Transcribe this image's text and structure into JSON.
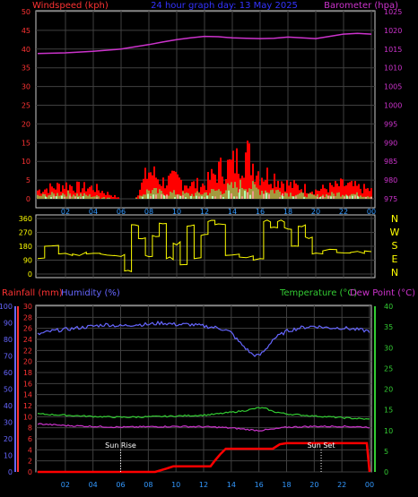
{
  "header": {
    "left_label": "Windspeed (kph)",
    "center_label": "24 hour graph day: 13 May 2025",
    "right_label": "Barometer (hpa)"
  },
  "colors": {
    "wind": "#ff0000",
    "gust": "#ff0000",
    "wind_avg": "#66ff66",
    "baro": "#cc33cc",
    "direction": "#ffff00",
    "temp": "#33cc33",
    "dew": "#cc33cc",
    "humidity": "#6666ff",
    "rain": "#ff0000",
    "axis_left": "#ff3333",
    "axis_right_top": "#cc33cc",
    "axis_temp": "#33cc33",
    "axis_humidity": "#6666ff",
    "x_ticks": "#3399ff",
    "grid": "#404040",
    "frame": "#cccccc"
  },
  "chart_data": [
    {
      "type": "line",
      "title": "24 hour graph day: 13 May 2025",
      "xlabel": "",
      "x_ticks": [
        "02",
        "04",
        "06",
        "08",
        "10",
        "12",
        "14",
        "16",
        "18",
        "20",
        "22",
        "00"
      ],
      "xlim": [
        0,
        24
      ],
      "left_axis": {
        "label": "Windspeed (kph)",
        "ylim": [
          0,
          50
        ],
        "ticks": [
          "0",
          "5",
          "10",
          "15",
          "20",
          "25",
          "30",
          "35",
          "40",
          "45",
          "50"
        ]
      },
      "right_axis": {
        "label": "Barometer (hpa)",
        "ylim": [
          975,
          1025
        ],
        "ticks": [
          "975",
          "980",
          "985",
          "990",
          "995",
          "1000",
          "1005",
          "1010",
          "1015",
          "1020",
          "1025"
        ]
      },
      "series": [
        {
          "name": "Barometer (hpa)",
          "axis": "right",
          "x": [
            0,
            2,
            4,
            6,
            7,
            8,
            9,
            10,
            11,
            12,
            13,
            14,
            15,
            16,
            17,
            18,
            19,
            20,
            21,
            22,
            23,
            24
          ],
          "y": [
            1013.8,
            1014.0,
            1014.4,
            1015.0,
            1015.6,
            1016.2,
            1016.9,
            1017.5,
            1018.0,
            1018.4,
            1018.3,
            1018.0,
            1017.9,
            1017.8,
            1017.9,
            1018.2,
            1018.0,
            1017.8,
            1018.4,
            1019.0,
            1019.2,
            1019.0
          ]
        },
        {
          "name": "Gust",
          "axis": "left",
          "x": [
            0,
            1,
            2,
            3,
            4,
            5,
            6,
            7,
            8,
            9,
            10,
            11,
            12,
            13,
            14,
            15,
            16,
            17,
            18,
            19,
            20,
            21,
            22,
            23,
            24
          ],
          "y": [
            3,
            4,
            5,
            4,
            4,
            2,
            0,
            0,
            10,
            6,
            7,
            5,
            5,
            10,
            12,
            16,
            9,
            8,
            5,
            4,
            3,
            4,
            5,
            4,
            3
          ]
        },
        {
          "name": "Average",
          "axis": "left",
          "x": [
            0,
            1,
            2,
            3,
            4,
            5,
            6,
            7,
            8,
            9,
            10,
            11,
            12,
            13,
            14,
            15,
            16,
            17,
            18,
            19,
            20,
            21,
            22,
            23,
            24
          ],
          "y": [
            1,
            1.5,
            2,
            1.5,
            1,
            0.5,
            0,
            0,
            3,
            2,
            2,
            1.5,
            2,
            3,
            4,
            5,
            3,
            3,
            2,
            1.5,
            1,
            1.5,
            2,
            1.5,
            1
          ]
        }
      ]
    },
    {
      "type": "line",
      "title": "",
      "x_ticks": [],
      "xlim": [
        0,
        24
      ],
      "left_axis": {
        "label": "",
        "ylim": [
          0,
          360
        ],
        "ticks": [
          "0",
          "90",
          "180",
          "270",
          "360"
        ]
      },
      "right_axis": {
        "label": "",
        "ticks": [
          "N",
          "W",
          "S",
          "E",
          "N"
        ]
      },
      "series": [
        {
          "name": "Wind direction",
          "x": [
            0,
            1,
            2,
            3,
            4,
            5,
            6,
            6.5,
            7,
            7.5,
            8,
            8.5,
            9,
            9.5,
            10,
            10.5,
            11,
            11.5,
            12,
            12.5,
            13,
            14,
            15,
            16,
            16.5,
            17,
            17.5,
            18,
            18.5,
            19,
            19.5,
            20,
            21,
            22,
            23,
            24
          ],
          "y": [
            100,
            180,
            130,
            130,
            130,
            130,
            120,
            20,
            320,
            230,
            120,
            250,
            330,
            100,
            200,
            60,
            310,
            100,
            250,
            340,
            320,
            120,
            110,
            90,
            340,
            300,
            340,
            300,
            180,
            310,
            240,
            130,
            150,
            140,
            140,
            150
          ]
        }
      ]
    },
    {
      "type": "line",
      "title": "",
      "x_ticks": [
        "02",
        "04",
        "06",
        "08",
        "10",
        "12",
        "14",
        "16",
        "18",
        "20",
        "22",
        "00"
      ],
      "xlim": [
        0,
        24
      ],
      "axes": {
        "rainfall": {
          "label": "Rainfall (mm)",
          "ylim": [
            0,
            30
          ],
          "ticks": [
            "0",
            "2",
            "4",
            "6",
            "8",
            "10",
            "12",
            "14",
            "16",
            "18",
            "20",
            "22",
            "24",
            "26",
            "28",
            "30"
          ]
        },
        "humidity": {
          "label": "Humidity (%)",
          "ylim": [
            0,
            100
          ],
          "ticks": [
            "0",
            "10",
            "20",
            "30",
            "40",
            "50",
            "60",
            "70",
            "80",
            "90",
            "100"
          ]
        },
        "temperature": {
          "label": "Temperature (°C)",
          "ylim": [
            0,
            40
          ],
          "ticks": [
            "0",
            "5",
            "10",
            "15",
            "20",
            "25",
            "30",
            "35",
            "40"
          ]
        },
        "dew_point": {
          "label": "Dew Point (°C)"
        }
      },
      "annotations": [
        {
          "text": "Sun Rise",
          "x": 6
        },
        {
          "text": "Sun Set",
          "x": 20.5
        }
      ],
      "series": [
        {
          "name": "Humidity (%)",
          "axis": "humidity",
          "x": [
            0,
            1,
            2,
            3,
            4,
            5,
            6,
            7,
            8,
            9,
            10,
            11,
            12,
            13,
            13.5,
            14,
            14.5,
            15,
            15.5,
            16,
            16.5,
            17,
            18,
            19,
            20,
            21,
            22,
            23,
            24
          ],
          "y": [
            83,
            85,
            86,
            87,
            88,
            89,
            88,
            89,
            89,
            90,
            89,
            89,
            88,
            87,
            86,
            84,
            79,
            75,
            71,
            70,
            74,
            80,
            85,
            87,
            88,
            87,
            87,
            86,
            85
          ]
        },
        {
          "name": "Temperature (°C)",
          "axis": "temperature",
          "x": [
            0,
            2,
            4,
            6,
            8,
            10,
            12,
            13,
            14,
            15,
            16,
            16.5,
            17,
            18,
            20,
            22,
            24
          ],
          "y": [
            14,
            13.7,
            13.4,
            13.2,
            13.3,
            13.5,
            13.7,
            14,
            14.4,
            14.8,
            15.5,
            15.3,
            14.6,
            14,
            13.5,
            13.1,
            12.7
          ]
        },
        {
          "name": "Dew Point (°C)",
          "axis": "temperature",
          "x": [
            0,
            2,
            4,
            6,
            8,
            10,
            12,
            13,
            14,
            15,
            16,
            17,
            18,
            20,
            22,
            24
          ],
          "y": [
            11.6,
            11.2,
            11.0,
            10.8,
            10.9,
            11.0,
            10.9,
            10.8,
            10.6,
            10.3,
            10.0,
            10.3,
            10.8,
            11.0,
            11.0,
            10.8
          ]
        },
        {
          "name": "Rainfall (mm)",
          "axis": "rainfall",
          "x": [
            0,
            8.5,
            9.3,
            9.8,
            12.5,
            12.8,
            13.2,
            13.6,
            14.0,
            17.0,
            17.5,
            18.0,
            23.8,
            24.0
          ],
          "y": [
            0,
            0,
            0.6,
            1.0,
            1.0,
            2.0,
            3.2,
            4.2,
            4.2,
            4.2,
            5.0,
            5.2,
            5.2,
            0
          ]
        }
      ]
    }
  ],
  "panel3": {
    "rain_label": "Rainfall (mm)",
    "hum_label": "Humidity (%)",
    "temp_label": "Temperature (°C)",
    "dew_label": "Dew Point (°C)",
    "sunrise_label": "Sun Rise",
    "sunset_label": "Sun Set"
  }
}
